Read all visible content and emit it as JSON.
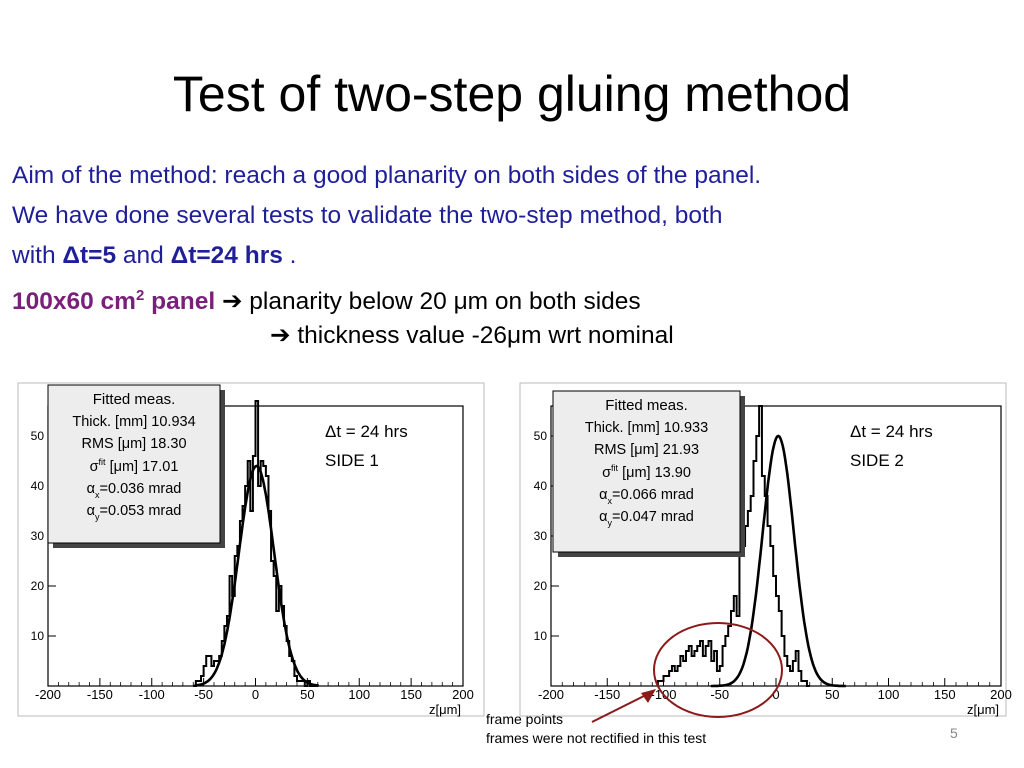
{
  "slide": {
    "title": "Test of two-step gluing method",
    "line1": "Aim of the method: reach a good planarity on both sides of the panel.",
    "line2": "We have done several tests to validate the two-step method, both",
    "line3_a": "with ",
    "line3_dt5": "Δt=5",
    "line3_b": " and ",
    "line3_dt24": "Δt=24 hrs",
    "line3_c": " .",
    "line4_panel": "100x60 cm",
    "line4_sup": "2",
    "line4_panel2": " panel",
    "arrow": "➔",
    "line4_text": " planarity below 20 μm on both sides",
    "line5_text": " thickness value -26μm wrt nominal",
    "caption_line1": "frame points",
    "caption_line2": "frames were not rectified in this test",
    "page_number": "5",
    "annotation_color": "#8b1a1a"
  },
  "chart_data": [
    {
      "type": "bar",
      "label_line1": "Δt = 24 hrs",
      "label_line2": "SIDE 1",
      "xlabel": "z[μm]",
      "xlim": [
        -200,
        200
      ],
      "ylim": [
        0,
        56
      ],
      "x_ticks": [
        "-200",
        "-150",
        "-100",
        "-50",
        "0",
        "50",
        "100",
        "150",
        "200"
      ],
      "y_ticks": [
        "10",
        "20",
        "30",
        "40",
        "50"
      ],
      "stats": {
        "title": "Fitted meas.",
        "thick": "Thick. [mm] 10.934",
        "rms": "RMS [μm] 18.30",
        "sigma": "σ",
        "sigma_sup": "fit",
        "sigma_val": " [μm] 17.01",
        "ax_a": "α",
        "ax_sub": "x",
        "ax_val": "=0.036 mrad",
        "ay_a": "α",
        "ay_sub": "y",
        "ay_val": "=0.053 mrad"
      },
      "hist": {
        "bin_start": -60,
        "bin_width": 2.5,
        "counts": [
          0,
          1,
          1,
          2,
          4,
          6,
          6,
          4,
          5,
          5,
          6,
          9,
          12,
          14,
          22,
          18,
          26,
          28,
          33,
          36,
          40,
          45,
          35,
          46,
          57,
          40,
          45,
          44,
          42,
          35,
          25,
          22,
          15,
          20,
          16,
          12,
          9,
          6,
          5,
          2,
          1,
          1,
          1,
          0,
          1,
          0,
          0,
          0
        ]
      },
      "fit": {
        "mean": 1,
        "sigma": 17,
        "amp": 44
      }
    },
    {
      "type": "bar",
      "label_line1": "Δt = 24 hrs",
      "label_line2": "SIDE 2",
      "xlabel": "z[μm]",
      "xlim": [
        -200,
        200
      ],
      "ylim": [
        0,
        56
      ],
      "x_ticks": [
        "-200",
        "-150",
        "-100",
        "-50",
        "0",
        "50",
        "100",
        "150",
        "200"
      ],
      "y_ticks": [
        "10",
        "20",
        "30",
        "40",
        "50"
      ],
      "stats": {
        "title": "Fitted meas.",
        "thick": "Thick. [mm] 10.933",
        "rms": "RMS [μm] 21.93",
        "sigma": "σ",
        "sigma_sup": "fit",
        "sigma_val": " [μm] 13.90",
        "ax_a": "α",
        "ax_sub": "x",
        "ax_val": "=0.066 mrad",
        "ay_a": "α",
        "ay_sub": "y",
        "ay_val": "=0.047 mrad"
      },
      "hist": {
        "bin_start": -105,
        "bin_width": 2.5,
        "counts": [
          1,
          1,
          2,
          2,
          3,
          4,
          3,
          4,
          6,
          5,
          7,
          8,
          6,
          7,
          8,
          9,
          6,
          8,
          9,
          5,
          7,
          3,
          4,
          8,
          10,
          12,
          15,
          18,
          14,
          26,
          28,
          32,
          35,
          38,
          45,
          50,
          56,
          42,
          38,
          32,
          28,
          22,
          18,
          15,
          10,
          6,
          4,
          3,
          5,
          7,
          3,
          1,
          1,
          0
        ]
      },
      "fit": {
        "mean": 2,
        "sigma": 14,
        "amp": 50
      },
      "circle_label": "frame points"
    }
  ]
}
